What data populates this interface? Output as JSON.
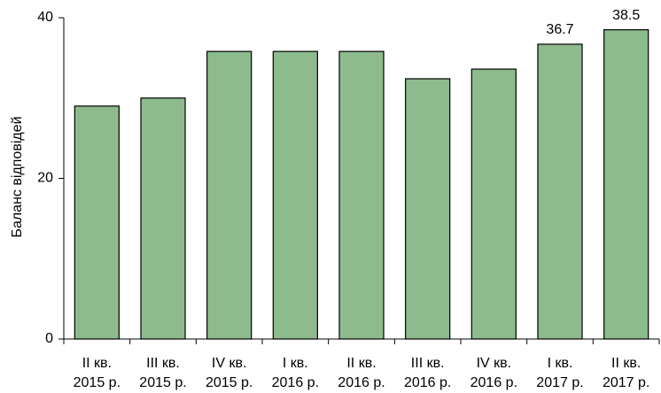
{
  "chart_data": {
    "type": "bar",
    "y_label": "Баланс відповідей",
    "categories": [
      [
        "II кв.",
        "2015 р."
      ],
      [
        "III кв.",
        "2015 р."
      ],
      [
        "IV кв.",
        "2015 р."
      ],
      [
        "I кв.",
        "2016 р."
      ],
      [
        "II кв.",
        "2016 р."
      ],
      [
        "III кв.",
        "2016 р."
      ],
      [
        "IV кв.",
        "2016 р."
      ],
      [
        "I кв.",
        "2017 р."
      ],
      [
        "II кв.",
        "2017 р."
      ]
    ],
    "values": [
      29,
      30,
      35.8,
      35.8,
      35.8,
      32.4,
      33.6,
      36.7,
      38.5
    ],
    "value_labels": [
      null,
      null,
      null,
      null,
      null,
      null,
      null,
      "36.7",
      "38.5"
    ],
    "color": "#8dbb8d",
    "ylim": [
      0,
      40
    ],
    "yticks": [
      0,
      20,
      40
    ],
    "grid": false
  }
}
